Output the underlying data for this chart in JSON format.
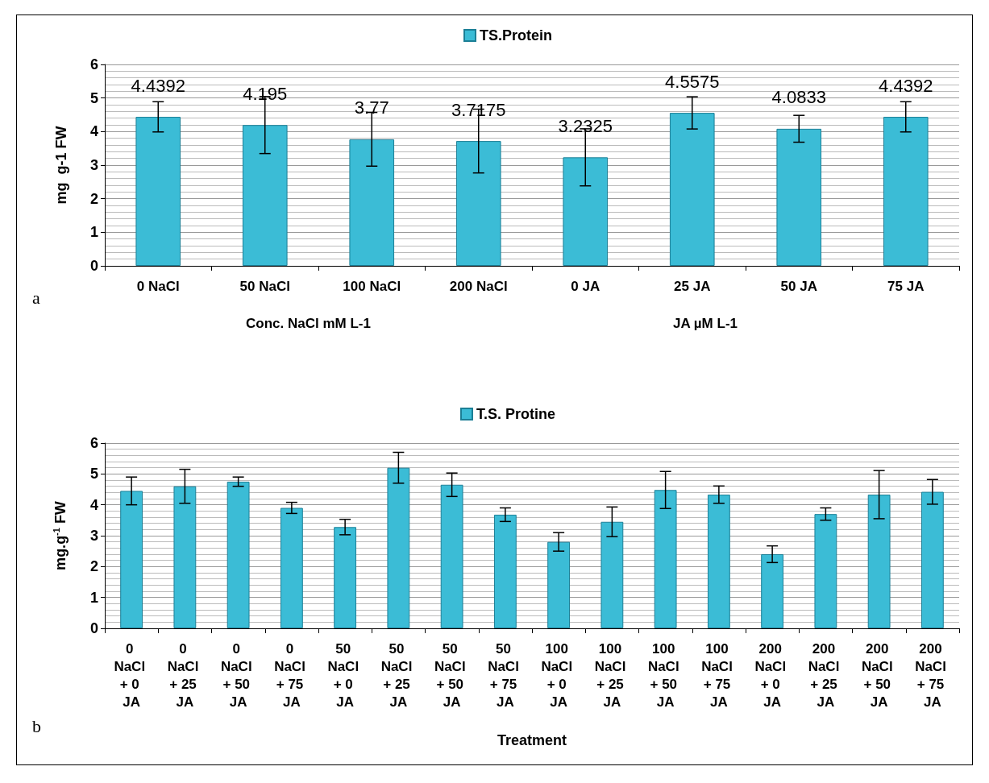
{
  "chart_data": [
    {
      "type": "bar",
      "categories": [
        "0 NaCl",
        "50 NaCl",
        "100 NaCl",
        "200 NaCl",
        "0 JA",
        "25 JA",
        "50 JA",
        "75 JA"
      ],
      "series": [
        {
          "name": "TS.Protein",
          "color": "#3bbcd6",
          "values": [
            4.4392,
            4.195,
            3.77,
            3.7175,
            3.2325,
            4.5575,
            4.0833,
            4.4392
          ],
          "errors": [
            0.45,
            0.85,
            0.8,
            0.95,
            0.85,
            0.48,
            0.4,
            0.45
          ]
        }
      ],
      "ylabel": "mg  g-1 FW",
      "ylim": [
        0,
        6
      ],
      "yticks": [
        0,
        1,
        2,
        3,
        4,
        5,
        6
      ],
      "grid": "y",
      "legend": "top",
      "data_labels": true,
      "annotations": [
        "a",
        "Conc. NaCl mM L-1",
        "JA µM L-1"
      ]
    },
    {
      "type": "bar",
      "categories": [
        "0 NaCl + 0 JA",
        "0 NaCl + 25 JA",
        "0 NaCl + 50 JA",
        "0 NaCl + 75 JA",
        "50 NaCl + 0 JA",
        "50 NaCl + 25 JA",
        "50 NaCl + 50 JA",
        "50 NaCl + 75 JA",
        "100 NaCl + 0 JA",
        "100 NaCl + 25 JA",
        "100 NaCl + 50 JA",
        "100 NaCl + 75 JA",
        "200 NaCl + 0 JA",
        "200 NaCl + 25 JA",
        "200 NaCl + 50 JA",
        "200 NaCl + 75 JA"
      ],
      "series": [
        {
          "name": "T.S. Protine",
          "color": "#3bbcd6",
          "values": [
            4.45,
            4.6,
            4.75,
            3.9,
            3.28,
            5.2,
            4.65,
            3.68,
            2.8,
            3.45,
            4.48,
            4.33,
            2.4,
            3.7,
            4.33,
            4.42
          ],
          "errors": [
            0.45,
            0.55,
            0.15,
            0.18,
            0.25,
            0.5,
            0.38,
            0.22,
            0.3,
            0.48,
            0.6,
            0.28,
            0.27,
            0.2,
            0.78,
            0.4
          ]
        }
      ],
      "xlabel": "Treatment",
      "ylabel": "mg.g$^{-1}$ FW",
      "ylim": [
        0,
        6
      ],
      "yticks": [
        0,
        1,
        2,
        3,
        4,
        5,
        6
      ],
      "grid": "y",
      "legend": "top",
      "annotations": [
        "b"
      ]
    }
  ]
}
